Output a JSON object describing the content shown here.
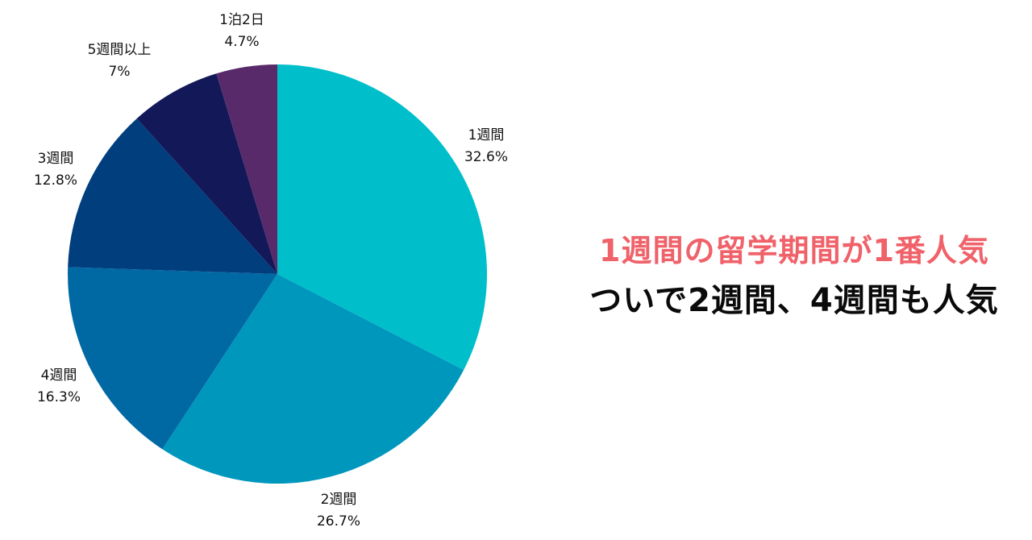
{
  "chart_data": {
    "type": "pie",
    "title": "",
    "start_angle": "12 o'clock",
    "direction": "clockwise",
    "categories": [
      "1週間",
      "2週間",
      "4週間",
      "3週間",
      "5週間以上",
      "1泊2日"
    ],
    "values": [
      32.6,
      26.7,
      16.3,
      12.8,
      7.0,
      4.7
    ],
    "value_labels": [
      "32.6%",
      "26.7%",
      "16.3%",
      "12.8%",
      "7%",
      "4.7%"
    ],
    "colors": [
      "#00BFCB",
      "#0097BD",
      "#0069A4",
      "#013E7E",
      "#121858",
      "#582A6A"
    ],
    "legend": "none",
    "data_labels": "outside, category + percent"
  },
  "labels": [
    {
      "name": "1週間",
      "pct": "32.6%"
    },
    {
      "name": "2週間",
      "pct": "26.7%"
    },
    {
      "name": "4週間",
      "pct": "16.3%"
    },
    {
      "name": "3週間",
      "pct": "12.8%"
    },
    {
      "name": "5週間以上",
      "pct": "7%"
    },
    {
      "name": "1泊2日",
      "pct": "4.7%"
    }
  ],
  "headline": {
    "line1": "1週間の留学期間が1番人気",
    "line1_color": "#F0626A",
    "line2": "ついで2週間、4週間も人気",
    "line2_color": "#0A0A0A"
  }
}
